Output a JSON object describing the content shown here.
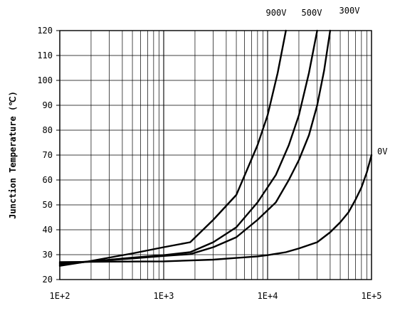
{
  "chart_data": {
    "type": "line",
    "title": "",
    "xlabel": "",
    "ylabel": "Junction Temperature (℃)",
    "x_scale": "log",
    "xlim": [
      100,
      100000
    ],
    "ylim": [
      20,
      120
    ],
    "grid": true,
    "x_ticks": [
      {
        "value": 100,
        "label": "1E+2"
      },
      {
        "value": 1000,
        "label": "1E+3"
      },
      {
        "value": 10000,
        "label": "1E+4"
      },
      {
        "value": 100000,
        "label": "1E+5"
      }
    ],
    "y_ticks": [
      20,
      30,
      40,
      50,
      60,
      70,
      80,
      90,
      100,
      110,
      120
    ],
    "series": [
      {
        "name": "900V",
        "x": [
          100,
          200,
          500,
          1000,
          1800,
          3000,
          5000,
          8000,
          10000,
          12500,
          15000
        ],
        "y": [
          25.5,
          27.5,
          30.5,
          33,
          35,
          44,
          54,
          74,
          86,
          103,
          120
        ]
      },
      {
        "name": "500V",
        "x": [
          100,
          200,
          500,
          1000,
          1800,
          3000,
          5000,
          8000,
          12000,
          16000,
          20000,
          25000,
          30000
        ],
        "y": [
          26,
          27.3,
          28.8,
          29.8,
          31,
          35,
          41,
          51,
          62,
          74,
          86,
          103,
          120
        ]
      },
      {
        "name": "300V",
        "x": [
          100,
          200,
          500,
          1000,
          1800,
          3000,
          5000,
          8000,
          12000,
          16000,
          20000,
          25000,
          30000,
          35000,
          40000
        ],
        "y": [
          26.5,
          27.3,
          28.5,
          29.5,
          30.2,
          33,
          37,
          44,
          51,
          60,
          68,
          78,
          90,
          104,
          120
        ]
      },
      {
        "name": "0V",
        "x": [
          100,
          300,
          1000,
          3000,
          5000,
          8000,
          10000,
          15000,
          20000,
          30000,
          40000,
          50000,
          60000,
          70000,
          80000,
          90000,
          100000
        ],
        "y": [
          27,
          27.2,
          27.3,
          28,
          28.7,
          29.3,
          29.8,
          31,
          32.5,
          35,
          39,
          43,
          47,
          52,
          57,
          63,
          70
        ]
      }
    ],
    "series_labels": [
      "900V",
      "500V",
      "300V",
      "0V"
    ]
  }
}
